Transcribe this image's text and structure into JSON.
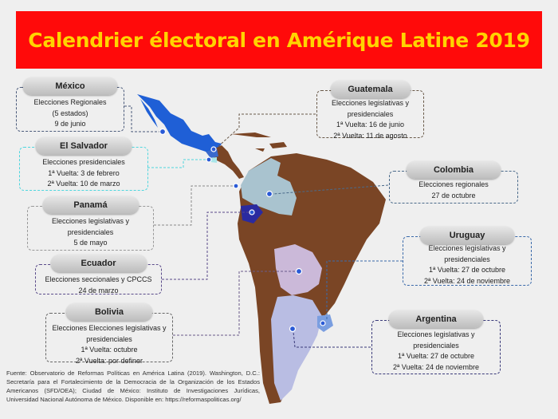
{
  "title": "Calendrier électoral en Amérique Latine 2019",
  "colors": {
    "title_bg": "#ff0a0a",
    "title_text": "#ffd400",
    "mexico": "#1f5fd6",
    "colombia": "#a9c3cf",
    "ecuador": "#2a2aa0",
    "bolivia": "#cbb9d9",
    "argentina": "#b9bde3",
    "uruguay": "#7a9ee0",
    "other": "#7a4525"
  },
  "countries": [
    {
      "name": "México",
      "lines": [
        "Elecciones Regionales",
        "(5 estados)",
        "9 de junio"
      ]
    },
    {
      "name": "El Salvador",
      "lines": [
        "Elecciones presidenciales",
        "1ª Vuelta: 3 de febrero",
        "2ª Vuelta: 10 de marzo"
      ]
    },
    {
      "name": "Panamá",
      "lines": [
        "Elecciones legislativas y",
        "presidenciales",
        "5 de mayo"
      ]
    },
    {
      "name": "Ecuador",
      "lines": [
        "Elecciones seccionales y CPCCS",
        "24 de marzo"
      ]
    },
    {
      "name": "Bolivia",
      "lines": [
        "Elecciones Elecciones legislativas y",
        "presidenciales",
        "1ª Vuelta: octubre",
        "2ª Vuelta: por definer"
      ]
    },
    {
      "name": "Guatemala",
      "lines": [
        "Elecciones legislativas y",
        "presidenciales",
        "1ª Vuelta: 16 de junio",
        "2ª Vuelta: 11 de agosto"
      ]
    },
    {
      "name": "Colombia",
      "lines": [
        "Elecciones regionales",
        "27 de octubre"
      ]
    },
    {
      "name": "Uruguay",
      "lines": [
        "Elecciones legislativas y",
        "presidenciales",
        "1ª Vuelta: 27 de octubre",
        "2ª Vuelta: 24 de noviembre"
      ]
    },
    {
      "name": "Argentina",
      "lines": [
        "Elecciones legislativas y",
        "presidenciales",
        "1ª Vuelta: 27 de octubre",
        "2ª Vuelta: 24 de noviembre"
      ]
    }
  ],
  "footer": "Fuente: Observatorio de  Reformas Políticas en América Latina (2019). Washington, D.C.: Secretaría para el Fortalecimiento de la Democracia de la Organización de los Estados Americanos (SFD/OEA); Ciudad de México: Instituto de Investigaciones Jurídicas, Universidad Nacional Autónoma de México. Disponible en: https://reformaspoliticas.org/"
}
